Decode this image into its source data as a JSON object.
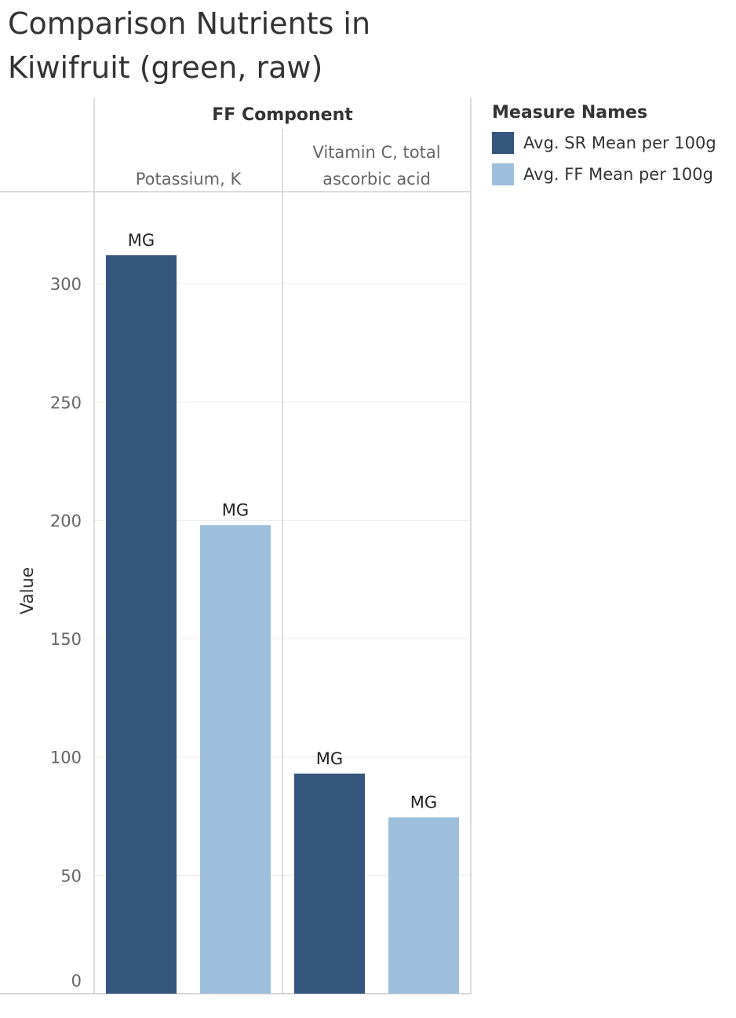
{
  "title_lines": [
    "Comparison Nutrients in",
    "Kiwifruit (green, raw)"
  ],
  "chart_data": {
    "type": "bar",
    "column_header": "FF Component",
    "categories": [
      "Potassium, K",
      "Vitamin C, total ascorbic acid"
    ],
    "category_label_lines": [
      [
        "Potassium, K"
      ],
      [
        "Vitamin C, total",
        "ascorbic acid"
      ]
    ],
    "series": [
      {
        "name": "Avg. SR Mean per 100g",
        "values": [
          312,
          93
        ],
        "labels": [
          "MG",
          "MG"
        ],
        "color": "#34567d"
      },
      {
        "name": "Avg. FF Mean per 100g",
        "values": [
          198,
          74.5
        ],
        "labels": [
          "MG",
          "MG"
        ],
        "color": "#9dbfdc"
      }
    ],
    "ylabel": "Value",
    "ylim": [
      0,
      340
    ],
    "yticks": [
      0,
      50,
      100,
      150,
      200,
      250,
      300
    ],
    "grid": true,
    "legend_title": "Measure Names",
    "legend_position": "right"
  }
}
